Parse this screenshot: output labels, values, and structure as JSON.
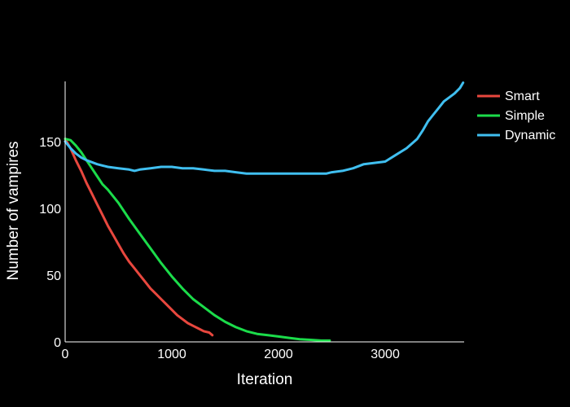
{
  "chart_data": {
    "type": "line",
    "xlabel": "Iteration",
    "ylabel": "Number of vampires",
    "xlim": [
      0,
      3740
    ],
    "ylim": [
      0,
      195
    ],
    "xticks": [
      0,
      1000,
      2000,
      3000
    ],
    "yticks": [
      0,
      50,
      100,
      150
    ],
    "grid": false,
    "legend_position": "top-right",
    "background": "#000000",
    "series": [
      {
        "name": "Smart",
        "color": "#e8473e",
        "x": [
          0,
          50,
          100,
          150,
          200,
          250,
          300,
          350,
          400,
          450,
          500,
          550,
          600,
          650,
          700,
          750,
          800,
          850,
          900,
          950,
          1000,
          1050,
          1100,
          1150,
          1200,
          1250,
          1300,
          1350,
          1380
        ],
        "y": [
          152,
          145,
          136,
          128,
          119,
          111,
          103,
          95,
          87,
          80,
          73,
          66,
          60,
          55,
          50,
          45,
          40,
          36,
          32,
          28,
          24,
          20,
          17,
          14,
          12,
          10,
          8,
          7,
          5
        ]
      },
      {
        "name": "Simple",
        "color": "#1bdc4a",
        "x": [
          0,
          50,
          100,
          150,
          200,
          250,
          300,
          350,
          400,
          500,
          600,
          700,
          800,
          900,
          1000,
          1100,
          1200,
          1300,
          1400,
          1500,
          1600,
          1700,
          1800,
          1900,
          2000,
          2100,
          2200,
          2300,
          2400,
          2480
        ],
        "y": [
          152,
          151,
          147,
          142,
          136,
          130,
          124,
          118,
          114,
          104,
          92,
          81,
          70,
          59,
          49,
          40,
          32,
          26,
          20,
          15,
          11,
          8,
          6,
          5,
          4,
          3,
          2,
          1.5,
          1,
          1
        ]
      },
      {
        "name": "Dynamic",
        "color": "#40bff0",
        "x": [
          0,
          50,
          100,
          150,
          200,
          300,
          400,
          500,
          600,
          650,
          700,
          800,
          900,
          1000,
          1100,
          1200,
          1300,
          1400,
          1500,
          1600,
          1700,
          1800,
          1900,
          2000,
          2100,
          2200,
          2300,
          2400,
          2450,
          2500,
          2600,
          2700,
          2800,
          2900,
          3000,
          3100,
          3200,
          3300,
          3350,
          3400,
          3450,
          3500,
          3550,
          3600,
          3650,
          3700,
          3730
        ],
        "y": [
          150,
          145,
          141,
          138,
          136,
          133,
          131,
          130,
          129,
          128,
          129,
          130,
          131,
          131,
          130,
          130,
          129,
          128,
          128,
          127,
          126,
          126,
          126,
          126,
          126,
          126,
          126,
          126,
          126,
          127,
          128,
          130,
          133,
          134,
          135,
          140,
          145,
          152,
          158,
          165,
          170,
          175,
          180,
          183,
          186,
          190,
          194
        ]
      }
    ]
  }
}
